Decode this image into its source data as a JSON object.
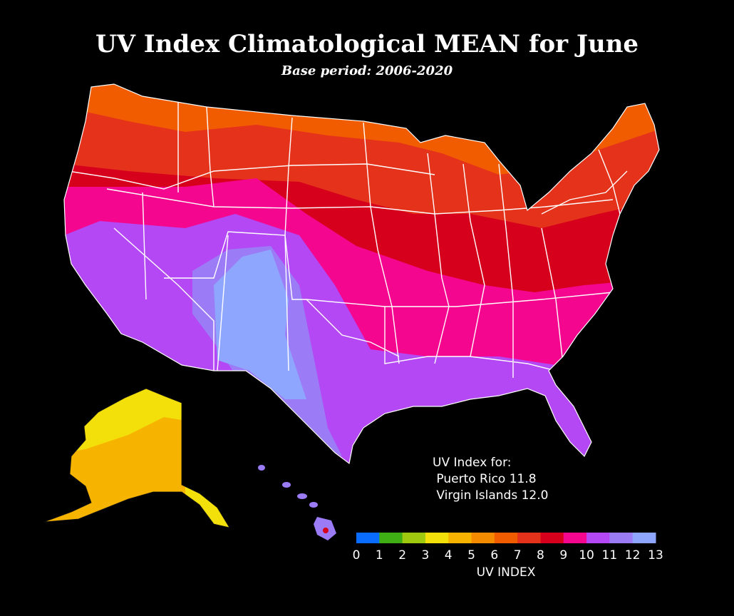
{
  "title": "UV Index Climatological MEAN for June",
  "subtitle": "Base period: 2006-2020",
  "territories_note": "UV Index for:\n Puerto Rico 11.8\n Virgin Islands 12.0",
  "colorbar": {
    "title": "UV INDEX",
    "ticks": [
      "0",
      "1",
      "2",
      "3",
      "4",
      "5",
      "6",
      "7",
      "8",
      "9",
      "10",
      "11",
      "12",
      "13"
    ],
    "colors": [
      "#0a6cff",
      "#3fae15",
      "#9fc90f",
      "#f3e00a",
      "#f6b400",
      "#f48a00",
      "#f25c00",
      "#e5321b",
      "#d6001c",
      "#f4068f",
      "#b448f5",
      "#9b7cf6",
      "#8fa6ff"
    ]
  },
  "regions": [
    {
      "name": "conus-uv-6",
      "level": 6
    },
    {
      "name": "conus-uv-7",
      "level": 7
    },
    {
      "name": "conus-uv-8",
      "level": 8
    },
    {
      "name": "conus-uv-9",
      "level": 9
    },
    {
      "name": "conus-uv-10",
      "level": 10
    },
    {
      "name": "conus-uv-11",
      "level": 11
    },
    {
      "name": "conus-uv-12",
      "level": 12
    },
    {
      "name": "alaska-uv-3",
      "level": 3
    },
    {
      "name": "alaska-uv-4",
      "level": 4
    },
    {
      "name": "hawaii-uv-11",
      "level": 11
    },
    {
      "name": "hawaii-peak-uv-8",
      "level": 8
    }
  ]
}
